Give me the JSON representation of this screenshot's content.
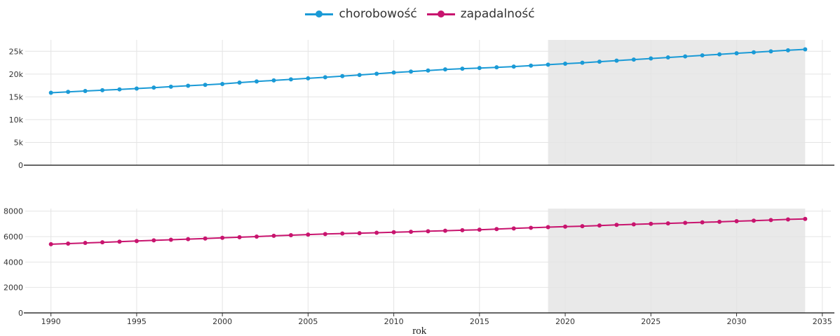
{
  "legend": [
    {
      "label": "chorobowość",
      "color": "#1a9ad6"
    },
    {
      "label": "zapadalność",
      "color": "#c8146e"
    }
  ],
  "chart_data": [
    {
      "type": "line",
      "series": [
        {
          "name": "chorobowość",
          "color": "#1a9ad6"
        }
      ],
      "x": [
        1990,
        1991,
        1992,
        1993,
        1994,
        1995,
        1996,
        1997,
        1998,
        1999,
        2000,
        2001,
        2002,
        2003,
        2004,
        2005,
        2006,
        2007,
        2008,
        2009,
        2010,
        2011,
        2012,
        2013,
        2014,
        2015,
        2016,
        2017,
        2018,
        2019,
        2020,
        2021,
        2022,
        2023,
        2024,
        2025,
        2026,
        2027,
        2028,
        2029,
        2030,
        2031,
        2032,
        2033,
        2034
      ],
      "values": [
        15900,
        16100,
        16280,
        16460,
        16640,
        16830,
        17030,
        17230,
        17430,
        17630,
        17830,
        18130,
        18380,
        18600,
        18830,
        19060,
        19300,
        19550,
        19800,
        20070,
        20340,
        20550,
        20780,
        21020,
        21190,
        21330,
        21480,
        21650,
        21860,
        22060,
        22270,
        22480,
        22720,
        22950,
        23180,
        23420,
        23650,
        23880,
        24110,
        24340,
        24570,
        24770,
        24990,
        25220,
        25420
      ],
      "ylim": [
        0,
        27500
      ],
      "yticks": [
        0,
        5000,
        10000,
        15000,
        20000,
        25000
      ],
      "ytick_labels": [
        "0",
        "5k",
        "10k",
        "15k",
        "20k",
        "25k"
      ],
      "xlim": [
        1988.5,
        2035.5
      ],
      "forecast_region": [
        2019,
        2034
      ],
      "grid": true
    },
    {
      "type": "line",
      "series": [
        {
          "name": "zapadalność",
          "color": "#c8146e"
        }
      ],
      "x": [
        1990,
        1991,
        1992,
        1993,
        1994,
        1995,
        1996,
        1997,
        1998,
        1999,
        2000,
        2001,
        2002,
        2003,
        2004,
        2005,
        2006,
        2007,
        2008,
        2009,
        2010,
        2011,
        2012,
        2013,
        2014,
        2015,
        2016,
        2017,
        2018,
        2019,
        2020,
        2021,
        2022,
        2023,
        2024,
        2025,
        2026,
        2027,
        2028,
        2029,
        2030,
        2031,
        2032,
        2033,
        2034
      ],
      "values": [
        5400,
        5450,
        5500,
        5550,
        5600,
        5650,
        5700,
        5750,
        5800,
        5850,
        5900,
        5950,
        6000,
        6060,
        6110,
        6160,
        6200,
        6240,
        6270,
        6300,
        6340,
        6380,
        6420,
        6460,
        6500,
        6540,
        6590,
        6640,
        6690,
        6740,
        6780,
        6820,
        6870,
        6920,
        6960,
        7000,
        7040,
        7080,
        7120,
        7160,
        7210,
        7250,
        7300,
        7350,
        7390
      ],
      "ylim": [
        0,
        8200
      ],
      "yticks": [
        0,
        2000,
        4000,
        6000,
        8000
      ],
      "ytick_labels": [
        "0",
        "2000",
        "4000",
        "6000",
        "8000"
      ],
      "xlim": [
        1988.5,
        2035.5
      ],
      "xticks": [
        1990,
        1995,
        2000,
        2005,
        2010,
        2015,
        2020,
        2025,
        2030,
        2035
      ],
      "xlabel": "rok",
      "forecast_region": [
        2019,
        2034
      ],
      "grid": true
    }
  ]
}
